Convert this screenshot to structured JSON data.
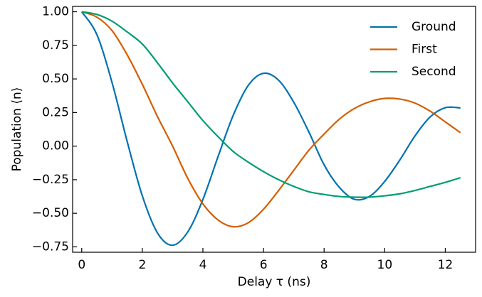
{
  "chart_data": {
    "type": "line",
    "xlabel": "Delay τ (ns)",
    "ylabel": "Population ⟨n⟩",
    "x": [
      0,
      0.5,
      1,
      1.5,
      2,
      2.5,
      3,
      3.5,
      4,
      4.5,
      5,
      5.5,
      6,
      6.5,
      7,
      7.5,
      8,
      8.5,
      9,
      9.5,
      10,
      10.5,
      11,
      11.5,
      12,
      12.5
    ],
    "series": [
      {
        "name": "Ground",
        "color": "#0072b2",
        "values": [
          1,
          0.83,
          0.474,
          0.035,
          -0.37,
          -0.646,
          -0.738,
          -0.639,
          -0.397,
          -0.078,
          0.229,
          0.453,
          0.542,
          0.49,
          0.326,
          0.104,
          -0.139,
          -0.306,
          -0.396,
          -0.374,
          -0.263,
          -0.103,
          0.076,
          0.217,
          0.286,
          0.284
        ]
      },
      {
        "name": "First",
        "color": "#d55e00",
        "values": [
          1,
          0.96,
          0.86,
          0.68,
          0.46,
          0.22,
          0.0,
          -0.24,
          -0.43,
          -0.55,
          -0.6,
          -0.57,
          -0.47,
          -0.33,
          -0.18,
          -0.03,
          0.09,
          0.2,
          0.28,
          0.33,
          0.355,
          0.35,
          0.32,
          0.26,
          0.18,
          0.1
        ]
      },
      {
        "name": "Second",
        "color": "#009e73",
        "values": [
          1,
          0.98,
          0.93,
          0.85,
          0.76,
          0.62,
          0.47,
          0.33,
          0.19,
          0.07,
          -0.04,
          -0.12,
          -0.19,
          -0.25,
          -0.3,
          -0.34,
          -0.36,
          -0.375,
          -0.38,
          -0.38,
          -0.37,
          -0.355,
          -0.33,
          -0.3,
          -0.27,
          -0.235
        ]
      }
    ],
    "xlim": [
      -0.3,
      13.0
    ],
    "ylim": [
      -0.79,
      1.04
    ],
    "xticks": [
      0,
      2,
      4,
      6,
      8,
      10,
      12
    ],
    "yticks": [
      {
        "value": 1,
        "label": "1.00"
      },
      {
        "value": 0.75,
        "label": "0.75"
      },
      {
        "value": 0.5,
        "label": "0.50"
      },
      {
        "value": 0.25,
        "label": "0.25"
      },
      {
        "value": 0,
        "label": "0.00"
      },
      {
        "value": -0.25,
        "label": "−0.25"
      },
      {
        "value": -0.5,
        "label": "−0.50"
      },
      {
        "value": -0.75,
        "label": "−0.75"
      }
    ],
    "legend": "upper right"
  }
}
